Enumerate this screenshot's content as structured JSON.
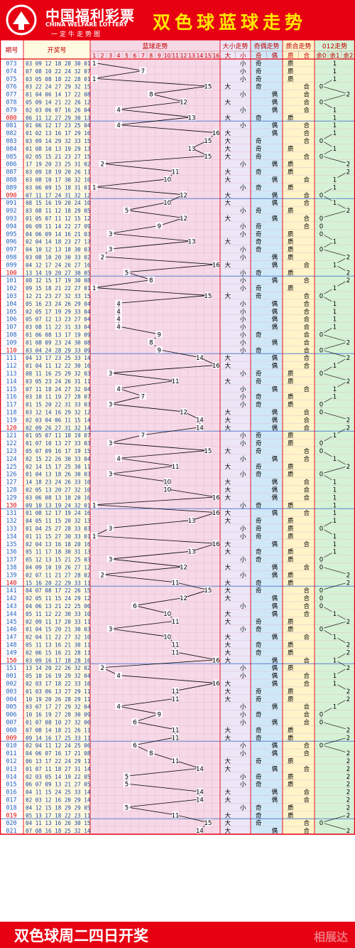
{
  "header": {
    "logo_cn": "中国福利彩票",
    "logo_en": "CHINA WELFARE LOTTERY",
    "logo_sub": "一定牛走势图",
    "title": "双色球蓝球走势"
  },
  "footer": {
    "text": "双色球周二四日开奖",
    "watermark": "相展达"
  },
  "colors": {
    "frame": "#e60012",
    "title": "#ffe600",
    "issue": "#2060c0",
    "issue_hl": "#e00000",
    "bg_issue": "#ffffff",
    "bg_numbers": "#fffbe0",
    "bg_blue": "#f6d8e6",
    "bg_bigsmall": "#ece6f6",
    "bg_oddeven": "#cfe8f8",
    "bg_primecomp": "#fff3c8",
    "bg_mod3": "#d6f2d6"
  },
  "table": {
    "headers": {
      "issue": "期号",
      "numbers": "开奖号",
      "blue": "蓝球走势",
      "bigsmall": "大小走势",
      "oddeven": "奇偶走势",
      "primecomp": "质合走势",
      "mod3": "012走势"
    },
    "subheaders": {
      "blue": [
        "1",
        "2",
        "3",
        "4",
        "5",
        "6",
        "7",
        "8",
        "9",
        "10",
        "11",
        "12",
        "13",
        "14",
        "15",
        "16"
      ],
      "bigsmall": [
        "大",
        "小"
      ],
      "oddeven": [
        "奇",
        "偶"
      ],
      "primecomp": [
        "质",
        "合"
      ],
      "mod3": [
        "余0",
        "余1",
        "余2"
      ]
    }
  },
  "chart_data": {
    "type": "line",
    "title": "双色球蓝球走势",
    "ylabel": "蓝球走势",
    "ylim": [
      1,
      16
    ],
    "draws": [
      {
        "issue": "073",
        "numbers": "03 09 12 18 28 30 01",
        "blue": 1
      },
      {
        "issue": "074",
        "numbers": "07 08 10 22 24 32 07",
        "blue": 7
      },
      {
        "issue": "075",
        "numbers": "03 05 08 18 22 28 01",
        "blue": 1
      },
      {
        "issue": "076",
        "numbers": "03 22 24 27 29 32 15",
        "blue": 15
      },
      {
        "issue": "077",
        "numbers": "01 04 06 14 17 22 08",
        "blue": 8
      },
      {
        "issue": "078",
        "numbers": "05 09 14 21 22 26 12",
        "blue": 12
      },
      {
        "issue": "079",
        "numbers": "02 03 06 07 16 26 04",
        "blue": 4
      },
      {
        "issue": "080",
        "numbers": "06 11 12 27 29 30 13",
        "blue": 13
      },
      {
        "issue": "081",
        "numbers": "01 06 12 17 23 25 04",
        "blue": 4
      },
      {
        "issue": "082",
        "numbers": "01 02 13 16 17 29 16",
        "blue": 16
      },
      {
        "issue": "083",
        "numbers": "03 09 14 29 32 33 15",
        "blue": 15
      },
      {
        "issue": "084",
        "numbers": "01 08 10 13 19 29 13",
        "blue": 13
      },
      {
        "issue": "085",
        "numbers": "02 05 15 21 23 27 15",
        "blue": 15
      },
      {
        "issue": "086",
        "numbers": "17 19 20 23 25 31 02",
        "blue": 2
      },
      {
        "issue": "087",
        "numbers": "03 09 18 19 20 26 11",
        "blue": 11
      },
      {
        "issue": "088",
        "numbers": "03 08 10 17 30 32 10",
        "blue": 10
      },
      {
        "issue": "089",
        "numbers": "03 06 09 15 18 31 01",
        "blue": 1
      },
      {
        "issue": "090",
        "numbers": "07 11 17 24 31 32 12",
        "blue": 12
      },
      {
        "issue": "091",
        "numbers": "08 15 16 19 20 24 10",
        "blue": 10
      },
      {
        "issue": "092",
        "numbers": "03 08 11 12 18 29 05",
        "blue": 5
      },
      {
        "issue": "093",
        "numbers": "01 05 07 11 12 15 12",
        "blue": 12
      },
      {
        "issue": "094",
        "numbers": "06 09 11 14 22 27 09",
        "blue": 9
      },
      {
        "issue": "095",
        "numbers": "04 06 09 14 16 21 03",
        "blue": 3
      },
      {
        "issue": "096",
        "numbers": "02 04 14 18 23 27 13",
        "blue": 13
      },
      {
        "issue": "097",
        "numbers": "04 10 12 13 18 30 03",
        "blue": 3
      },
      {
        "issue": "098",
        "numbers": "03 08 10 20 30 33 02",
        "blue": 2
      },
      {
        "issue": "099",
        "numbers": "04 12 17 24 26 27 16",
        "blue": 16
      },
      {
        "issue": "100",
        "numbers": "13 14 19 20 27 30 05",
        "blue": 5
      },
      {
        "issue": "101",
        "numbers": "08 12 15 17 19 30 08",
        "blue": 8
      },
      {
        "issue": "102",
        "numbers": "09 15 18 21 22 27 01",
        "blue": 1
      },
      {
        "issue": "103",
        "numbers": "12 21 23 27 32 33 15",
        "blue": 15
      },
      {
        "issue": "104",
        "numbers": "05 16 23 24 26 29 04",
        "blue": 4
      },
      {
        "issue": "105",
        "numbers": "02 05 17 19 29 33 04",
        "blue": 4
      },
      {
        "issue": "106",
        "numbers": "05 07 12 13 23 27 04",
        "blue": 4
      },
      {
        "issue": "107",
        "numbers": "03 08 11 22 31 33 04",
        "blue": 4
      },
      {
        "issue": "108",
        "numbers": "01 06 08 13 17 19 09",
        "blue": 9
      },
      {
        "issue": "109",
        "numbers": "01 08 09 23 24 30 08",
        "blue": 8
      },
      {
        "issue": "110",
        "numbers": "03 04 24 28 29 33 09",
        "blue": 9
      },
      {
        "issue": "111",
        "numbers": "04 13 17 23 25 33 14",
        "blue": 14
      },
      {
        "issue": "112",
        "numbers": "01 04 11 12 22 30 16",
        "blue": 16
      },
      {
        "issue": "113",
        "numbers": "08 11 16 25 29 32 03",
        "blue": 3
      },
      {
        "issue": "114",
        "numbers": "03 05 23 24 26 31 11",
        "blue": 11
      },
      {
        "issue": "115",
        "numbers": "07 11 18 24 27 32 04",
        "blue": 4
      },
      {
        "issue": "116",
        "numbers": "03 10 11 19 27 28 07",
        "blue": 7
      },
      {
        "issue": "117",
        "numbers": "01 15 20 22 31 33 03",
        "blue": 3
      },
      {
        "issue": "118",
        "numbers": "03 12 14 16 29 32 12",
        "blue": 12
      },
      {
        "issue": "119",
        "numbers": "02 03 04 06 11 15 14",
        "blue": 14
      },
      {
        "issue": "120",
        "numbers": "02 09 26 27 31 32 14",
        "blue": 14
      },
      {
        "issue": "121",
        "numbers": "01 05 07 11 18 19 07",
        "blue": 7
      },
      {
        "issue": "122",
        "numbers": "01 07 10 13 27 33 03",
        "blue": 3
      },
      {
        "issue": "123",
        "numbers": "05 07 09 16 17 19 15",
        "blue": 15
      },
      {
        "issue": "124",
        "numbers": "02 15 22 26 30 33 04",
        "blue": 4
      },
      {
        "issue": "125",
        "numbers": "02 14 15 17 25 30 11",
        "blue": 11
      },
      {
        "issue": "126",
        "numbers": "01 04 13 18 26 30 03",
        "blue": 3
      },
      {
        "issue": "127",
        "numbers": "14 18 23 24 26 33 10",
        "blue": 10
      },
      {
        "issue": "128",
        "numbers": "02 05 13 20 27 32 10",
        "blue": 10
      },
      {
        "issue": "129",
        "numbers": "03 06 08 13 18 20 16",
        "blue": 16
      },
      {
        "issue": "130",
        "numbers": "09 10 13 19 24 32 01",
        "blue": 1
      },
      {
        "issue": "131",
        "numbers": "01 08 12 17 19 24 16",
        "blue": 16
      },
      {
        "issue": "132",
        "numbers": "04 05 11 15 20 32 13",
        "blue": 13
      },
      {
        "issue": "133",
        "numbers": "01 04 25 27 28 33 03",
        "blue": 3
      },
      {
        "issue": "134",
        "numbers": "01 11 15 27 30 33 01",
        "blue": 1
      },
      {
        "issue": "135",
        "numbers": "02 04 13 16 18 20 16",
        "blue": 16
      },
      {
        "issue": "136",
        "numbers": "05 11 17 18 30 31 13",
        "blue": 13
      },
      {
        "issue": "137",
        "numbers": "05 12 13 15 21 25 03",
        "blue": 3
      },
      {
        "issue": "138",
        "numbers": "04 09 10 19 26 27 12",
        "blue": 12
      },
      {
        "issue": "139",
        "numbers": "02 07 11 21 27 28 02",
        "blue": 2
      },
      {
        "issue": "140",
        "numbers": "15 16 20 22 29 33 11",
        "blue": 11
      },
      {
        "issue": "141",
        "numbers": "04 07 08 17 22 26 15",
        "blue": 15
      },
      {
        "issue": "142",
        "numbers": "02 05 11 15 24 29 12",
        "blue": 12
      },
      {
        "issue": "143",
        "numbers": "04 06 13 21 22 25 06",
        "blue": 6
      },
      {
        "issue": "144",
        "numbers": "05 11 12 22 30 33 10",
        "blue": 10
      },
      {
        "issue": "145",
        "numbers": "02 09 11 17 20 33 11",
        "blue": 11
      },
      {
        "issue": "146",
        "numbers": "01 04 15 20 21 30 03",
        "blue": 3
      },
      {
        "issue": "147",
        "numbers": "02 04 11 22 27 32 10",
        "blue": 10
      },
      {
        "issue": "148",
        "numbers": "05 11 13 16 21 30 11",
        "blue": 11
      },
      {
        "issue": "149",
        "numbers": "02 06 15 16 21 28 11",
        "blue": 11
      },
      {
        "issue": "150",
        "numbers": "03 09 16 17 18 28 16",
        "blue": 16
      },
      {
        "issue": "151",
        "numbers": "13 14 20 22 26 32 02",
        "blue": 2
      },
      {
        "issue": "001",
        "numbers": "05 10 16 19 29 32 04",
        "blue": 4
      },
      {
        "issue": "002",
        "numbers": "02 03 17 18 22 33 16",
        "blue": 16
      },
      {
        "issue": "003",
        "numbers": "01 03 06 13 27 29 11",
        "blue": 11
      },
      {
        "issue": "004",
        "numbers": "10 19 20 26 28 29 11",
        "blue": 11
      },
      {
        "issue": "005",
        "numbers": "03 07 17 27 29 32 04",
        "blue": 4
      },
      {
        "issue": "006",
        "numbers": "10 16 19 27 28 30 09",
        "blue": 9
      },
      {
        "issue": "007",
        "numbers": "01 07 08 10 27 32 06",
        "blue": 6
      },
      {
        "issue": "008",
        "numbers": "07 08 14 18 21 26 11",
        "blue": 11
      },
      {
        "issue": "009",
        "numbers": "09 14 16 17 25 33 11",
        "blue": 11
      },
      {
        "issue": "010",
        "numbers": "02 04 11 12 24 25 06",
        "blue": 6
      },
      {
        "issue": "011",
        "numbers": "04 06 07 16 17 21 08",
        "blue": 8
      },
      {
        "issue": "012",
        "numbers": "06 13 17 22 24 29 11",
        "blue": 11
      },
      {
        "issue": "013",
        "numbers": "01 07 11 18 27 31 14",
        "blue": 14
      },
      {
        "issue": "014",
        "numbers": "02 03 05 14 19 22 05",
        "blue": 5
      },
      {
        "issue": "015",
        "numbers": "06 07 09 13 21 27 05",
        "blue": 5
      },
      {
        "issue": "016",
        "numbers": "04 11 15 24 25 33 14",
        "blue": 14
      },
      {
        "issue": "017",
        "numbers": "02 03 12 16 20 29 14",
        "blue": 14
      },
      {
        "issue": "018",
        "numbers": "04 12 15 18 29 29 05",
        "blue": 5
      },
      {
        "issue": "019",
        "numbers": "05 13 17 18 22 23 11",
        "blue": 11
      },
      {
        "issue": "020",
        "numbers": "04 11 13 16 26 30 15",
        "blue": 15
      },
      {
        "issue": "021",
        "numbers": "07 08 16 18 25 32 14",
        "blue": 14
      }
    ],
    "grouping": "blocks of 10 issues separated by blue rules",
    "big_threshold": 9,
    "prime_set": [
      1,
      2,
      3,
      5,
      7,
      11,
      13
    ],
    "grid": true
  }
}
